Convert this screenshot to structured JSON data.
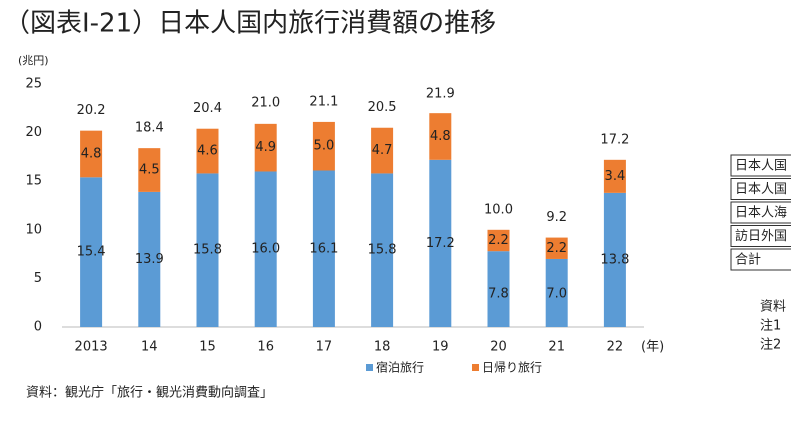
{
  "chart_data": {
    "type": "stacked_bar",
    "title": "（図表Ⅰ-21）日本人国内旅行消費額の推移",
    "y_unit": "(兆円)",
    "x_unit": "(年)",
    "categories": [
      "2013",
      "14",
      "15",
      "16",
      "17",
      "18",
      "19",
      "20",
      "21",
      "22"
    ],
    "series": [
      {
        "name": "宿泊旅行",
        "color": "#5b9bd5",
        "values": [
          15.4,
          13.9,
          15.8,
          16.0,
          16.1,
          15.8,
          17.2,
          7.8,
          7.0,
          13.8
        ],
        "value_labels": [
          "15.4",
          "13.9",
          "15.8",
          "16.0",
          "16.1",
          "15.8",
          "17.2",
          "7.8",
          "7.0",
          "13.8"
        ]
      },
      {
        "name": "日帰り旅行",
        "color": "#ed7d31",
        "values": [
          4.8,
          4.5,
          4.6,
          4.9,
          5.0,
          4.7,
          4.8,
          2.2,
          2.2,
          3.4
        ],
        "value_labels": [
          "4.8",
          "4.5",
          "4.6",
          "4.9",
          "5.0",
          "4.7",
          "4.8",
          "2.2",
          "2.2",
          "3.4"
        ]
      }
    ],
    "totals": [
      20.2,
      18.4,
      20.4,
      21.0,
      21.1,
      20.5,
      21.9,
      10.0,
      9.2,
      17.2
    ],
    "total_labels": [
      "20.2",
      "18.4",
      "20.4",
      "21.0",
      "21.1",
      "20.5",
      "21.9",
      "10.0",
      "9.2",
      "17.2"
    ],
    "ylim": [
      0,
      25
    ],
    "yticks": [
      0,
      5,
      10,
      15,
      20,
      25
    ],
    "grid": false,
    "source": "資料：観光庁「旅行・観光消費動向調査」"
  },
  "side_table": {
    "rows": [
      "日本人国",
      "日本人国",
      "日本人海",
      "訪日外国",
      "合計"
    ]
  },
  "side_notes": [
    "資料",
    "注1",
    "注2"
  ]
}
